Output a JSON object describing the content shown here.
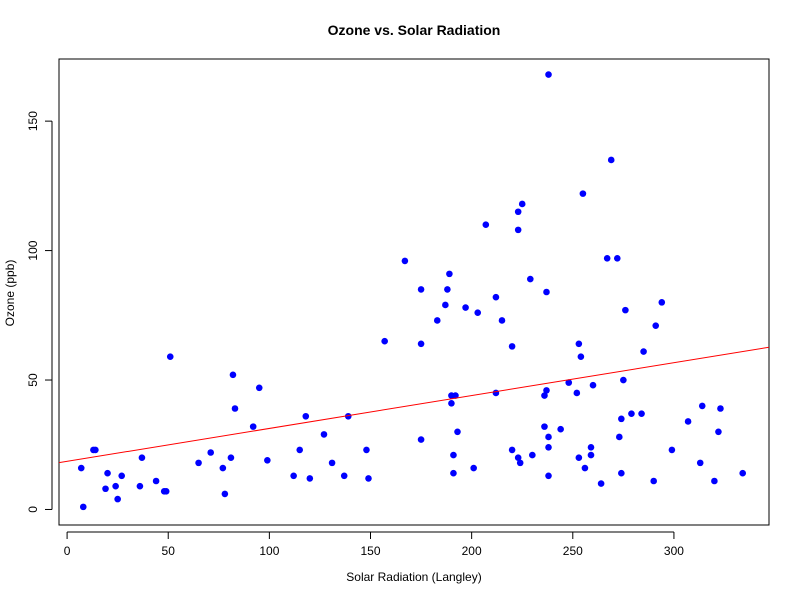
{
  "chart_data": {
    "type": "scatter",
    "title": "Ozone vs. Solar Radiation",
    "xlabel": "Solar Radiation (Langley)",
    "ylabel": "Ozone (ppb)",
    "xlim": [
      -4,
      347
    ],
    "ylim": [
      -6,
      174
    ],
    "xticks": [
      0,
      50,
      100,
      150,
      200,
      250,
      300
    ],
    "yticks": [
      0,
      50,
      100,
      150
    ],
    "grid": false,
    "point_color": "#0000ff",
    "regression_line": {
      "color": "#ff0000",
      "intercept": 18.6,
      "slope": 0.127
    },
    "points": [
      {
        "x": 7,
        "y": 16
      },
      {
        "x": 8,
        "y": 1
      },
      {
        "x": 13,
        "y": 23
      },
      {
        "x": 14,
        "y": 23
      },
      {
        "x": 19,
        "y": 8
      },
      {
        "x": 20,
        "y": 14
      },
      {
        "x": 24,
        "y": 9
      },
      {
        "x": 25,
        "y": 4
      },
      {
        "x": 27,
        "y": 13
      },
      {
        "x": 36,
        "y": 9
      },
      {
        "x": 37,
        "y": 20
      },
      {
        "x": 44,
        "y": 11
      },
      {
        "x": 48,
        "y": 7
      },
      {
        "x": 49,
        "y": 7
      },
      {
        "x": 51,
        "y": 59
      },
      {
        "x": 65,
        "y": 18
      },
      {
        "x": 71,
        "y": 22
      },
      {
        "x": 77,
        "y": 16
      },
      {
        "x": 78,
        "y": 6
      },
      {
        "x": 81,
        "y": 20
      },
      {
        "x": 82,
        "y": 52
      },
      {
        "x": 83,
        "y": 39
      },
      {
        "x": 92,
        "y": 32
      },
      {
        "x": 95,
        "y": 47
      },
      {
        "x": 99,
        "y": 19
      },
      {
        "x": 112,
        "y": 13
      },
      {
        "x": 115,
        "y": 23
      },
      {
        "x": 118,
        "y": 36
      },
      {
        "x": 120,
        "y": 12
      },
      {
        "x": 127,
        "y": 29
      },
      {
        "x": 131,
        "y": 18
      },
      {
        "x": 137,
        "y": 13
      },
      {
        "x": 139,
        "y": 36
      },
      {
        "x": 148,
        "y": 23
      },
      {
        "x": 149,
        "y": 12
      },
      {
        "x": 157,
        "y": 65
      },
      {
        "x": 167,
        "y": 96
      },
      {
        "x": 175,
        "y": 85
      },
      {
        "x": 175,
        "y": 64
      },
      {
        "x": 175,
        "y": 27
      },
      {
        "x": 183,
        "y": 73
      },
      {
        "x": 187,
        "y": 79
      },
      {
        "x": 188,
        "y": 85
      },
      {
        "x": 189,
        "y": 91
      },
      {
        "x": 190,
        "y": 44
      },
      {
        "x": 190,
        "y": 41
      },
      {
        "x": 191,
        "y": 21
      },
      {
        "x": 191,
        "y": 14
      },
      {
        "x": 192,
        "y": 44
      },
      {
        "x": 193,
        "y": 30
      },
      {
        "x": 197,
        "y": 78
      },
      {
        "x": 201,
        "y": 16
      },
      {
        "x": 203,
        "y": 76
      },
      {
        "x": 207,
        "y": 110
      },
      {
        "x": 212,
        "y": 82
      },
      {
        "x": 212,
        "y": 45
      },
      {
        "x": 215,
        "y": 73
      },
      {
        "x": 220,
        "y": 63
      },
      {
        "x": 220,
        "y": 23
      },
      {
        "x": 223,
        "y": 115
      },
      {
        "x": 223,
        "y": 108
      },
      {
        "x": 223,
        "y": 20
      },
      {
        "x": 224,
        "y": 18
      },
      {
        "x": 225,
        "y": 118
      },
      {
        "x": 229,
        "y": 89
      },
      {
        "x": 230,
        "y": 21
      },
      {
        "x": 236,
        "y": 44
      },
      {
        "x": 236,
        "y": 32
      },
      {
        "x": 237,
        "y": 84
      },
      {
        "x": 237,
        "y": 46
      },
      {
        "x": 238,
        "y": 168
      },
      {
        "x": 238,
        "y": 28
      },
      {
        "x": 238,
        "y": 24
      },
      {
        "x": 238,
        "y": 13
      },
      {
        "x": 244,
        "y": 31
      },
      {
        "x": 248,
        "y": 49
      },
      {
        "x": 252,
        "y": 45
      },
      {
        "x": 253,
        "y": 64
      },
      {
        "x": 253,
        "y": 20
      },
      {
        "x": 254,
        "y": 59
      },
      {
        "x": 255,
        "y": 122
      },
      {
        "x": 256,
        "y": 16
      },
      {
        "x": 259,
        "y": 24
      },
      {
        "x": 259,
        "y": 21
      },
      {
        "x": 260,
        "y": 48
      },
      {
        "x": 264,
        "y": 10
      },
      {
        "x": 267,
        "y": 97
      },
      {
        "x": 269,
        "y": 135
      },
      {
        "x": 272,
        "y": 97
      },
      {
        "x": 273,
        "y": 28
      },
      {
        "x": 274,
        "y": 35
      },
      {
        "x": 274,
        "y": 14
      },
      {
        "x": 275,
        "y": 50
      },
      {
        "x": 276,
        "y": 77
      },
      {
        "x": 279,
        "y": 37
      },
      {
        "x": 284,
        "y": 37
      },
      {
        "x": 285,
        "y": 61
      },
      {
        "x": 290,
        "y": 11
      },
      {
        "x": 291,
        "y": 71
      },
      {
        "x": 294,
        "y": 80
      },
      {
        "x": 299,
        "y": 23
      },
      {
        "x": 307,
        "y": 34
      },
      {
        "x": 313,
        "y": 18
      },
      {
        "x": 314,
        "y": 40
      },
      {
        "x": 320,
        "y": 11
      },
      {
        "x": 322,
        "y": 30
      },
      {
        "x": 323,
        "y": 39
      },
      {
        "x": 334,
        "y": 14
      }
    ]
  }
}
